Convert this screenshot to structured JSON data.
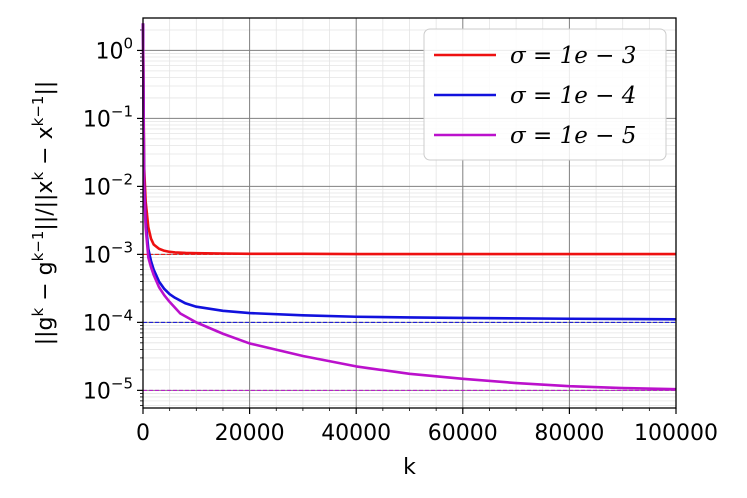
{
  "chart_data": {
    "type": "line",
    "title": "",
    "xlabel": "k",
    "ylabel": "||g^{k} − g^{k−1}||/||x^{k} − x^{k−1}||",
    "xlim": [
      0,
      100000
    ],
    "ylim": [
      5.5e-06,
      3
    ],
    "yscale": "log",
    "grid": true,
    "legend_position": "top-right",
    "xticks": [
      {
        "value": 0,
        "label": "0"
      },
      {
        "value": 20000,
        "label": "20000"
      },
      {
        "value": 40000,
        "label": "40000"
      },
      {
        "value": 60000,
        "label": "60000"
      },
      {
        "value": 80000,
        "label": "80000"
      },
      {
        "value": 100000,
        "label": "100000"
      }
    ],
    "yticks": [
      {
        "value": 1,
        "exp": "0"
      },
      {
        "value": 0.1,
        "exp": "−1"
      },
      {
        "value": 0.01,
        "exp": "−2"
      },
      {
        "value": 0.001,
        "exp": "−3"
      },
      {
        "value": 0.0001,
        "exp": "−4"
      },
      {
        "value": 1e-05,
        "exp": "−5"
      }
    ],
    "ytick_base": "10",
    "series": [
      {
        "name": "σ = 1e − 3",
        "color": "#ee1111",
        "reference": 0.001,
        "x": [
          0,
          200,
          500,
          1000,
          1500,
          2000,
          3000,
          4000,
          5000,
          6000,
          8000,
          10000,
          15000,
          20000,
          30000,
          40000,
          60000,
          80000,
          100000
        ],
        "y": [
          2.5,
          0.02,
          0.006,
          0.0025,
          0.0017,
          0.0014,
          0.00121,
          0.00113,
          0.00109,
          0.00107,
          0.00105,
          0.00104,
          0.00103,
          0.00102,
          0.00102,
          0.00101,
          0.00101,
          0.00101,
          0.00101
        ]
      },
      {
        "name": "σ = 1e − 4",
        "color": "#1111dd",
        "reference": 0.0001,
        "x": [
          0,
          200,
          500,
          1000,
          1500,
          2000,
          3000,
          4000,
          5000,
          6000,
          8000,
          10000,
          15000,
          20000,
          30000,
          40000,
          50000,
          60000,
          80000,
          100000
        ],
        "y": [
          2.5,
          0.012,
          0.003,
          0.0012,
          0.0008,
          0.0006,
          0.0004,
          0.00031,
          0.00026,
          0.00023,
          0.00019,
          0.00017,
          0.000148,
          0.000137,
          0.000127,
          0.000121,
          0.000118,
          0.000116,
          0.000113,
          0.000111
        ]
      },
      {
        "name": "σ = 1e − 5",
        "color": "#bb11cc",
        "reference": 1e-05,
        "x": [
          0,
          200,
          500,
          1000,
          1500,
          2000,
          3000,
          4000,
          5000,
          7000,
          10000,
          15000,
          20000,
          30000,
          40000,
          50000,
          60000,
          70000,
          80000,
          90000,
          100000
        ],
        "y": [
          2.5,
          0.01,
          0.0025,
          0.0009,
          0.00065,
          0.0005,
          0.00033,
          0.00025,
          0.0002,
          0.000135,
          0.0001,
          6.8e-05,
          4.9e-05,
          3.2e-05,
          2.25e-05,
          1.75e-05,
          1.48e-05,
          1.28e-05,
          1.15e-05,
          1.08e-05,
          1.04e-05
        ]
      }
    ]
  }
}
